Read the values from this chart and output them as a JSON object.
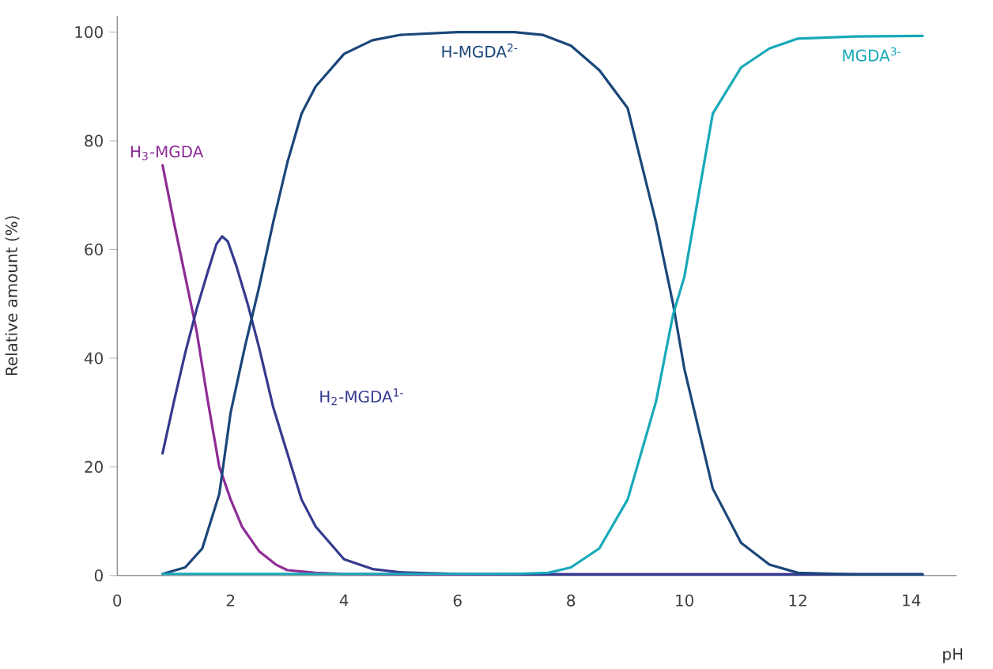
{
  "chart_data": {
    "type": "line",
    "xlabel": "pH",
    "ylabel": "Relative amount (%)",
    "xlim": [
      0,
      14.8
    ],
    "ylim": [
      0,
      103
    ],
    "xticks": [
      0,
      2,
      4,
      6,
      8,
      10,
      12,
      14
    ],
    "yticks": [
      0,
      20,
      40,
      60,
      80,
      100
    ],
    "grid": false,
    "marker": "none",
    "line_style": "solid",
    "series": [
      {
        "name": "H$_{3}$-MGDA",
        "color": "#8e2c96",
        "x": [
          0.8,
          1.0,
          1.2,
          1.4,
          1.6,
          1.8,
          2.0,
          2.2,
          2.5,
          2.8,
          3.0,
          3.5,
          4,
          6,
          8,
          10,
          12,
          14.2
        ],
        "values": [
          75.5,
          65,
          55,
          45,
          32,
          20,
          14,
          9,
          4.5,
          2,
          1,
          0.5,
          0.3,
          0.2,
          0.2,
          0.2,
          0.2,
          0.2
        ]
      },
      {
        "name": "H$_{2}$-MGDA$^{1-}$",
        "color": "#343a8e",
        "x": [
          0.8,
          1.0,
          1.2,
          1.4,
          1.6,
          1.75,
          1.85,
          1.95,
          2.1,
          2.3,
          2.5,
          2.75,
          3.0,
          3.25,
          3.5,
          4,
          4.5,
          5,
          6,
          8,
          10,
          12,
          14.2
        ],
        "values": [
          22.5,
          32,
          41,
          49,
          56,
          61,
          62.4,
          61.5,
          57,
          50,
          42,
          31,
          22.5,
          14,
          9,
          3,
          1.2,
          0.6,
          0.3,
          0.2,
          0.2,
          0.2,
          0.2
        ]
      },
      {
        "name": "H-MGDA$^{2-}$",
        "color": "#1b4679",
        "x": [
          0.8,
          1.2,
          1.5,
          1.8,
          2.0,
          2.25,
          2.5,
          2.75,
          3.0,
          3.25,
          3.5,
          4,
          4.5,
          5,
          6,
          7,
          7.5,
          8,
          8.5,
          9,
          9.5,
          9.8,
          10,
          10.5,
          11,
          11.5,
          12,
          13,
          14.2
        ],
        "values": [
          0.3,
          1.5,
          5,
          15,
          30,
          42,
          53,
          65,
          76,
          85,
          90,
          96,
          98.5,
          99.5,
          100,
          100,
          99.5,
          97.5,
          93,
          86,
          65,
          50,
          38,
          16,
          6,
          2,
          0.5,
          0.2,
          0.2
        ]
      },
      {
        "name": "MGDA$^{3-}$",
        "color": "#17a9b8",
        "x": [
          0.8,
          4,
          7,
          7.6,
          8,
          8.5,
          9,
          9.5,
          9.8,
          10,
          10.5,
          11,
          11.5,
          12,
          13,
          14.2
        ],
        "values": [
          0.3,
          0.3,
          0.3,
          0.5,
          1.5,
          5,
          14,
          32,
          48,
          55,
          85,
          93.5,
          97,
          98.8,
          99.2,
          99.3
        ]
      }
    ]
  }
}
